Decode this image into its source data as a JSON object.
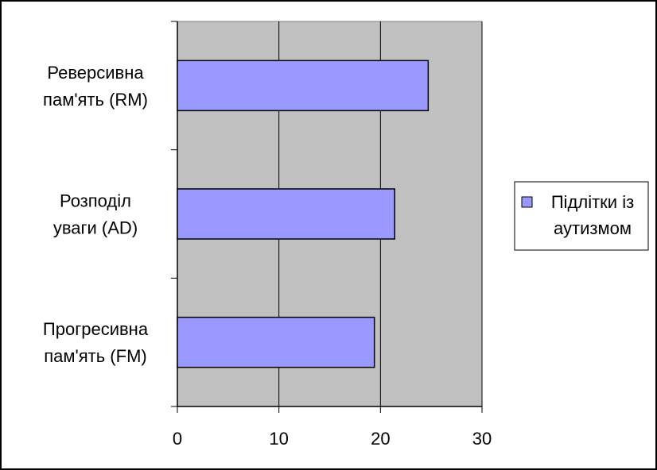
{
  "chart_data": {
    "type": "bar",
    "orientation": "horizontal",
    "categories": [
      [
        "Реверсивна",
        "пам'ять (RM)"
      ],
      [
        "Розподіл",
        "уваги (AD)"
      ],
      [
        "Прогресивна",
        "пам'ять (FM)"
      ]
    ],
    "series": [
      {
        "name": "Підлітки із аутизмом",
        "legend_lines": [
          "Підлітки із",
          "аутизмом"
        ],
        "values": [
          24.7,
          21.4,
          19.4
        ],
        "color": "#9999ff"
      }
    ],
    "xlim": [
      0,
      30
    ],
    "xticks": [
      "0",
      "10",
      "20",
      "30"
    ],
    "title": "",
    "xlabel": "",
    "ylabel": "",
    "grid": true,
    "plot_background": "#c0c0c0",
    "legend_position": "right"
  }
}
